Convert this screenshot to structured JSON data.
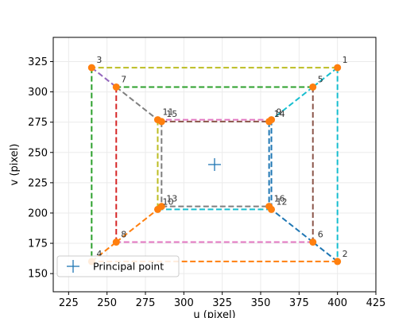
{
  "chart_data": {
    "type": "line",
    "title": "",
    "xlabel": "u (pixel)",
    "ylabel": "v (pixel)",
    "xlim": [
      215,
      425
    ],
    "ylim": [
      135,
      345
    ],
    "xticks": [
      225,
      250,
      275,
      300,
      325,
      350,
      375,
      400,
      425
    ],
    "yticks": [
      150,
      175,
      200,
      225,
      250,
      275,
      300,
      325
    ],
    "grid": true,
    "points": [
      {
        "id": "1",
        "u": 400,
        "v": 320
      },
      {
        "id": "2",
        "u": 400,
        "v": 160
      },
      {
        "id": "3",
        "u": 240,
        "v": 320
      },
      {
        "id": "4",
        "u": 240,
        "v": 160
      },
      {
        "id": "5",
        "u": 384,
        "v": 304
      },
      {
        "id": "6",
        "u": 384,
        "v": 176
      },
      {
        "id": "7",
        "u": 256,
        "v": 304
      },
      {
        "id": "8",
        "u": 256,
        "v": 176
      },
      {
        "id": "9",
        "u": 357,
        "v": 277
      },
      {
        "id": "10",
        "u": 283,
        "v": 203
      },
      {
        "id": "11",
        "u": 283,
        "v": 277
      },
      {
        "id": "12",
        "u": 357,
        "v": 203
      },
      {
        "id": "13",
        "u": 285.5,
        "v": 205.5
      },
      {
        "id": "14",
        "u": 355.5,
        "v": 275.5
      },
      {
        "id": "15",
        "u": 285.5,
        "v": 275.5
      },
      {
        "id": "16",
        "u": 355.5,
        "v": 205.5
      }
    ],
    "segments": [
      {
        "from": "1",
        "to": "3",
        "color": "#bcbd22"
      },
      {
        "from": "1",
        "to": "2",
        "color": "#17becf"
      },
      {
        "from": "2",
        "to": "4",
        "color": "#ff7f0e"
      },
      {
        "from": "3",
        "to": "4",
        "color": "#2ca02c"
      },
      {
        "from": "5",
        "to": "7",
        "color": "#2ca02c"
      },
      {
        "from": "5",
        "to": "6",
        "color": "#8c564b"
      },
      {
        "from": "6",
        "to": "8",
        "color": "#e377c2"
      },
      {
        "from": "7",
        "to": "8",
        "color": "#d62728"
      },
      {
        "from": "3",
        "to": "7",
        "color": "#9467bd"
      },
      {
        "from": "7",
        "to": "11",
        "color": "#7f7f7f"
      },
      {
        "from": "1",
        "to": "5",
        "color": "#17becf"
      },
      {
        "from": "5",
        "to": "9",
        "color": "#17becf"
      },
      {
        "from": "2",
        "to": "6",
        "color": "#1f77b4"
      },
      {
        "from": "6",
        "to": "12",
        "color": "#1f77b4"
      },
      {
        "from": "4",
        "to": "8",
        "color": "#ff7f0e"
      },
      {
        "from": "8",
        "to": "10",
        "color": "#ff7f0e"
      },
      {
        "from": "11",
        "to": "9",
        "color": "#e377c2"
      },
      {
        "from": "15",
        "to": "14",
        "color": "#8c564b"
      },
      {
        "from": "11",
        "to": "10",
        "color": "#bcbd22"
      },
      {
        "from": "15",
        "to": "13",
        "color": "#7f7f7f"
      },
      {
        "from": "9",
        "to": "12",
        "color": "#1f77b4"
      },
      {
        "from": "14",
        "to": "16",
        "color": "#1f77b4"
      },
      {
        "from": "10",
        "to": "12",
        "color": "#17becf"
      },
      {
        "from": "13",
        "to": "16",
        "color": "#7f7f7f"
      }
    ],
    "principal_point": {
      "u": 320,
      "v": 240,
      "color": "#1f77b4"
    },
    "marker_color": "#ff7f0e",
    "legend": {
      "label": "Principal point",
      "location": "lower-left"
    }
  }
}
